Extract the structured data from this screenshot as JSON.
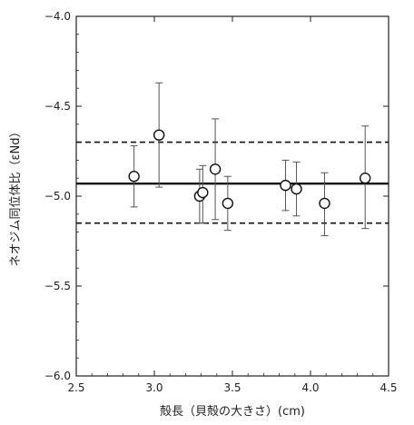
{
  "chart_data": {
    "type": "scatter",
    "title": "",
    "xlabel": "殻長（貝殻の大きさ）(cm)",
    "ylabel": "ネオジム同位体比（εNd）",
    "xlim": [
      2.5,
      4.5
    ],
    "ylim": [
      -6.0,
      -4.0
    ],
    "x_ticks": [
      "2.5",
      "3.0",
      "3.5",
      "4.0",
      "4.5"
    ],
    "y_ticks": [
      "-6.0",
      "-5.5",
      "-5.0",
      "-4.5",
      "-4.0"
    ],
    "grid": false,
    "marker": "open-circle",
    "points": [
      {
        "x": 2.87,
        "y": -4.89,
        "y_low": -5.06,
        "y_high": -4.72
      },
      {
        "x": 3.03,
        "y": -4.66,
        "y_low": -4.95,
        "y_high": -4.37
      },
      {
        "x": 3.29,
        "y": -5.0,
        "y_low": -5.15,
        "y_high": -4.85
      },
      {
        "x": 3.31,
        "y": -4.98,
        "y_low": -5.15,
        "y_high": -4.83
      },
      {
        "x": 3.39,
        "y": -4.85,
        "y_low": -5.13,
        "y_high": -4.57
      },
      {
        "x": 3.47,
        "y": -5.04,
        "y_low": -5.19,
        "y_high": -4.89
      },
      {
        "x": 3.84,
        "y": -4.94,
        "y_low": -5.08,
        "y_high": -4.8
      },
      {
        "x": 3.91,
        "y": -4.96,
        "y_low": -5.11,
        "y_high": -4.81
      },
      {
        "x": 4.09,
        "y": -5.04,
        "y_low": -5.22,
        "y_high": -4.87
      },
      {
        "x": 4.35,
        "y": -4.9,
        "y_low": -5.18,
        "y_high": -4.61
      }
    ],
    "mean_line": -4.93,
    "band_lines": [
      -4.7,
      -5.15
    ],
    "colors": {
      "axis": "#222222",
      "marker": "#111111",
      "errorbar": "#555555",
      "lines": "#111111"
    }
  }
}
